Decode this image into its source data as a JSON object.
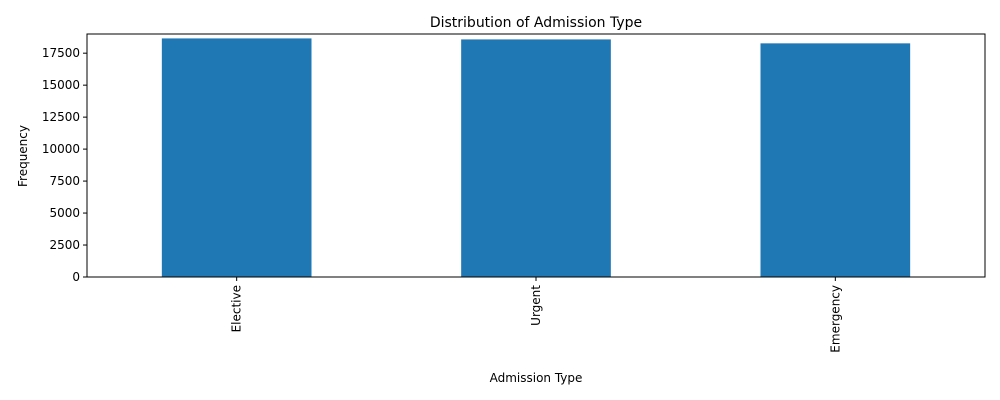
{
  "chart_data": {
    "type": "bar",
    "title": "Distribution of Admission Type",
    "xlabel": "Admission Type",
    "ylabel": "Frequency",
    "categories": [
      "Elective",
      "Urgent",
      "Emergency"
    ],
    "values": [
      18655,
      18576,
      18269
    ],
    "ylim": [
      0,
      19000
    ],
    "yticks": [
      0,
      2500,
      5000,
      7500,
      10000,
      12500,
      15000,
      17500
    ],
    "bar_color": "#1f77b4",
    "grid": false,
    "legend": "none",
    "xtick_rotation": "vertical"
  }
}
